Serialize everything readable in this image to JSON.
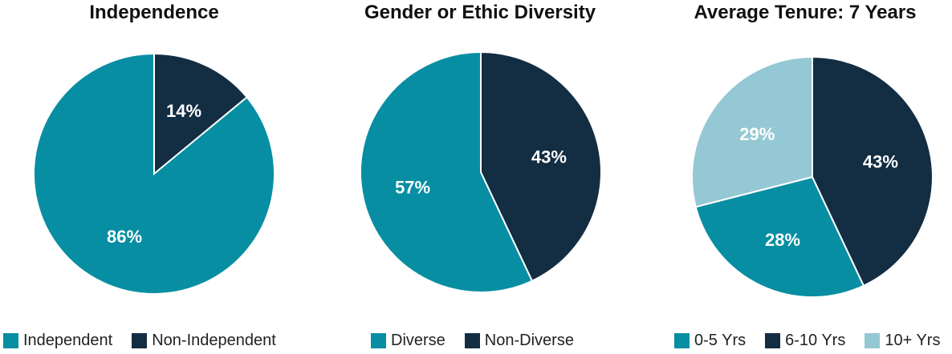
{
  "colors": {
    "teal": "#078EA2",
    "navy": "#132D43",
    "light_blue": "#94C8D4"
  },
  "chart_data": [
    {
      "type": "pie",
      "title": "Independence",
      "slices": [
        {
          "name": "Non-Independent",
          "value": 14,
          "label": "14%",
          "color": "#132D43"
        },
        {
          "name": "Independent",
          "value": 86,
          "label": "86%",
          "color": "#078EA2"
        }
      ],
      "legend": [
        {
          "name": "Independent",
          "color": "#078EA2"
        },
        {
          "name": "Non-Independent",
          "color": "#132D43"
        }
      ],
      "legend_position": "bottom"
    },
    {
      "type": "pie",
      "title": "Gender or Ethic Diversity",
      "slices": [
        {
          "name": "Non-Diverse",
          "value": 43,
          "label": "43%",
          "color": "#132D43"
        },
        {
          "name": "Diverse",
          "value": 57,
          "label": "57%",
          "color": "#078EA2"
        }
      ],
      "legend": [
        {
          "name": "Diverse",
          "color": "#078EA2"
        },
        {
          "name": "Non-Diverse",
          "color": "#132D43"
        }
      ],
      "legend_position": "bottom"
    },
    {
      "type": "pie",
      "title": "Average Tenure: 7 Years",
      "slices": [
        {
          "name": "6-10 Yrs",
          "value": 43,
          "label": "43%",
          "color": "#132D43"
        },
        {
          "name": "0-5 Yrs",
          "value": 28,
          "label": "28%",
          "color": "#078EA2"
        },
        {
          "name": "10+ Yrs",
          "value": 29,
          "label": "29%",
          "color": "#94C8D4"
        }
      ],
      "legend": [
        {
          "name": "0-5 Yrs",
          "color": "#078EA2"
        },
        {
          "name": "6-10 Yrs",
          "color": "#132D43"
        },
        {
          "name": "10+ Yrs",
          "color": "#94C8D4"
        }
      ],
      "legend_position": "bottom"
    }
  ]
}
